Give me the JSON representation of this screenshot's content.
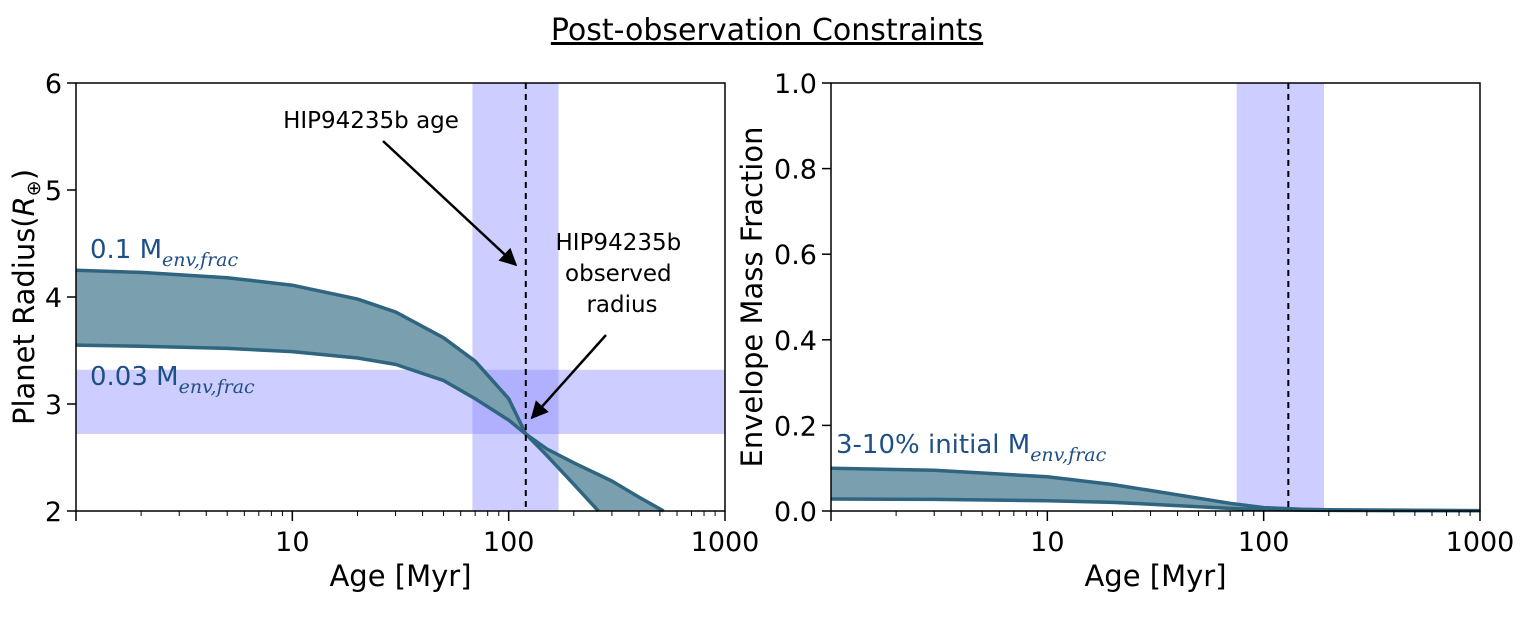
{
  "figure_title": "Post-observation Constraints",
  "colors": {
    "band": "#8888ff",
    "band_opacity": 0.42,
    "curve_fill": "#7a9fae",
    "curve_line": "#2f6580",
    "label_color": "#1f4f87"
  },
  "chart_data": [
    {
      "type": "area",
      "ylabel": "Planet Radius",
      "ylabel_symbol": "R",
      "ylabel_sub": "⊕",
      "xlabel": "Age [Myr]",
      "xscale": "log",
      "xlim": [
        1,
        1000
      ],
      "ylim": [
        2,
        6
      ],
      "xticks": [
        10,
        100,
        1000
      ],
      "yticks": [
        2,
        3,
        4,
        5,
        6
      ],
      "vline_age": 120,
      "vband": [
        68,
        170
      ],
      "hband": [
        2.72,
        3.32
      ],
      "series": [
        {
          "name": "0.1 M_env,frac",
          "label_main": "0.1 M",
          "label_sub": "env,frac",
          "x": [
            1,
            2,
            5,
            10,
            20,
            30,
            50,
            70,
            100,
            120,
            150,
            200,
            300,
            400,
            520
          ],
          "values": [
            4.25,
            4.23,
            4.18,
            4.11,
            3.98,
            3.86,
            3.62,
            3.4,
            3.05,
            2.72,
            2.58,
            2.45,
            2.28,
            2.13,
            2.0
          ]
        },
        {
          "name": "0.03 M_env,frac",
          "label_main": "0.03 M",
          "label_sub": "env,frac",
          "x": [
            1,
            2,
            5,
            10,
            20,
            30,
            50,
            70,
            100,
            120,
            150,
            200,
            260
          ],
          "values": [
            3.55,
            3.54,
            3.52,
            3.49,
            3.43,
            3.37,
            3.22,
            3.05,
            2.85,
            2.72,
            2.52,
            2.25,
            2.0
          ]
        }
      ],
      "annotations": [
        {
          "lines": [
            "HIP94235b age"
          ],
          "points_to": {
            "x": 108,
            "y": 4.3
          }
        },
        {
          "lines": [
            "HIP94235b",
            "observed",
            "radius"
          ],
          "points_to": {
            "x": 128,
            "y": 2.87
          }
        }
      ]
    },
    {
      "type": "area",
      "ylabel": "Envelope Mass Fraction",
      "xlabel": "Age [Myr]",
      "xscale": "log",
      "xlim": [
        1,
        1000
      ],
      "ylim": [
        0,
        1
      ],
      "xticks": [
        10,
        100,
        1000
      ],
      "yticks": [
        "0.0",
        "0.2",
        "0.4",
        "0.6",
        "0.8",
        "1.0"
      ],
      "vline_age": 130,
      "vband": [
        75,
        190
      ],
      "series": [
        {
          "name": "10% initial",
          "x": [
            1,
            3,
            10,
            20,
            30,
            50,
            70,
            100,
            150,
            200,
            400,
            1000
          ],
          "values": [
            0.1,
            0.095,
            0.08,
            0.062,
            0.048,
            0.03,
            0.018,
            0.008,
            0.004,
            0.003,
            0.002,
            0.001
          ]
        },
        {
          "name": "3% initial",
          "x": [
            1,
            3,
            10,
            20,
            30,
            50,
            70,
            100,
            150,
            200,
            400,
            1000
          ],
          "values": [
            0.028,
            0.027,
            0.024,
            0.02,
            0.016,
            0.01,
            0.006,
            0.003,
            0.002,
            0.0015,
            0.001,
            0.0005
          ]
        }
      ],
      "series_label_main": "3-10% initial M",
      "series_label_sub": "env,frac"
    }
  ]
}
